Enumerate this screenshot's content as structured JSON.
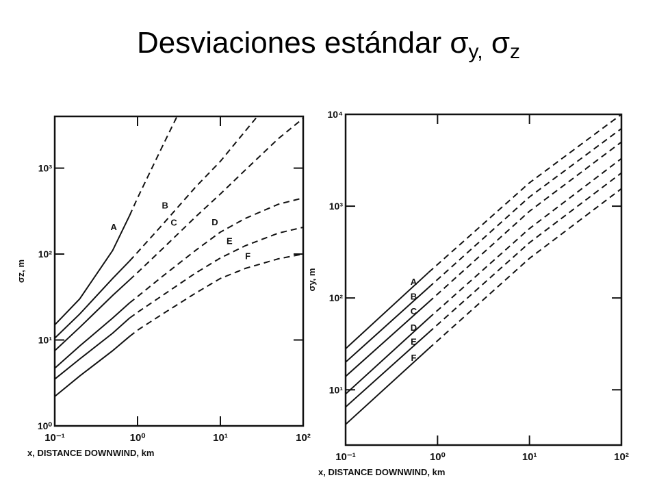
{
  "title_parts": [
    "Desviaciones estándar  σ",
    "y,",
    " σ",
    "z"
  ],
  "chart_data": [
    {
      "type": "line",
      "xlog": true,
      "ylog": true,
      "color": "#111111",
      "solid_until_x": 0.8,
      "xlabel": "x, DISTANCE DOWNWIND, km",
      "ylabel": "σz, m",
      "xlim": [
        0.1,
        100
      ],
      "ylim": [
        1,
        4000
      ],
      "xticks": [
        {
          "value": 0.1,
          "label": "10⁻¹"
        },
        {
          "value": 1,
          "label": "10⁰"
        },
        {
          "value": 10,
          "label": "10¹"
        },
        {
          "value": 100,
          "label": "10²"
        }
      ],
      "yticks": [
        {
          "value": 1,
          "label": "10⁰"
        },
        {
          "value": 10,
          "label": "10¹"
        },
        {
          "value": 100,
          "label": "10²"
        },
        {
          "value": 1000,
          "label": "10³"
        }
      ],
      "series": [
        {
          "name": "A",
          "x": [
            0.1,
            0.2,
            0.5,
            0.8,
            1,
            2,
            3
          ],
          "values": [
            15,
            30,
            110,
            280,
            450,
            1800,
            4000
          ]
        },
        {
          "name": "B",
          "x": [
            0.1,
            0.2,
            0.5,
            0.8,
            1,
            2,
            5,
            10,
            20,
            28
          ],
          "values": [
            10.5,
            20,
            52,
            83,
            105,
            220,
            600,
            1200,
            2700,
            4000
          ]
        },
        {
          "name": "C",
          "x": [
            0.1,
            0.2,
            0.5,
            0.8,
            1,
            2,
            5,
            10,
            20,
            50,
            100
          ],
          "values": [
            7.5,
            14,
            33,
            50,
            61,
            115,
            270,
            500,
            950,
            2200,
            3800
          ]
        },
        {
          "name": "D",
          "x": [
            0.1,
            0.2,
            0.5,
            0.8,
            1,
            2,
            5,
            10,
            20,
            50,
            100
          ],
          "values": [
            4.7,
            8.5,
            18,
            27,
            32,
            55,
            110,
            180,
            260,
            380,
            450
          ]
        },
        {
          "name": "E",
          "x": [
            0.1,
            0.2,
            0.5,
            0.8,
            1,
            2,
            5,
            10,
            20,
            50,
            100
          ],
          "values": [
            3.5,
            6,
            12,
            18,
            21,
            33,
            60,
            90,
            125,
            175,
            205
          ]
        },
        {
          "name": "F",
          "x": [
            0.1,
            0.2,
            0.5,
            0.8,
            1,
            2,
            5,
            10,
            20,
            50,
            100
          ],
          "values": [
            2.2,
            3.8,
            7.5,
            11,
            13,
            20,
            35,
            52,
            68,
            88,
            100
          ]
        }
      ]
    },
    {
      "type": "line",
      "xlog": true,
      "ylog": true,
      "color": "#111111",
      "solid_until_x": 0.8,
      "xlabel": "x, DISTANCE DOWNWIND, km",
      "ylabel": "σy, m",
      "xlim": [
        0.1,
        100
      ],
      "ylim": [
        2.5,
        10000
      ],
      "xticks": [
        {
          "value": 0.1,
          "label": "10⁻¹"
        },
        {
          "value": 1,
          "label": "10⁰"
        },
        {
          "value": 10,
          "label": "10¹"
        },
        {
          "value": 100,
          "label": "10²"
        }
      ],
      "yticks": [
        {
          "value": 10,
          "label": "10¹"
        },
        {
          "value": 100,
          "label": "10²"
        },
        {
          "value": 1000,
          "label": "10³"
        },
        {
          "value": 10000,
          "label": "10⁴"
        }
      ],
      "series": [
        {
          "name": "A",
          "x": [
            0.1,
            0.8,
            10,
            100
          ],
          "values": [
            28,
            190,
            1800,
            10000
          ]
        },
        {
          "name": "B",
          "x": [
            0.1,
            0.8,
            10,
            100
          ],
          "values": [
            20,
            130,
            1260,
            7000
          ]
        },
        {
          "name": "C",
          "x": [
            0.1,
            0.8,
            10,
            100
          ],
          "values": [
            14,
            90,
            880,
            5000
          ]
        },
        {
          "name": "D",
          "x": [
            0.1,
            0.8,
            10,
            100
          ],
          "values": [
            9,
            60,
            570,
            3300
          ]
        },
        {
          "name": "E",
          "x": [
            0.1,
            0.8,
            10,
            100
          ],
          "values": [
            6.5,
            42,
            400,
            2300
          ]
        },
        {
          "name": "F",
          "x": [
            0.1,
            0.8,
            10,
            100
          ],
          "values": [
            4.2,
            28,
            270,
            1550
          ]
        }
      ]
    }
  ]
}
